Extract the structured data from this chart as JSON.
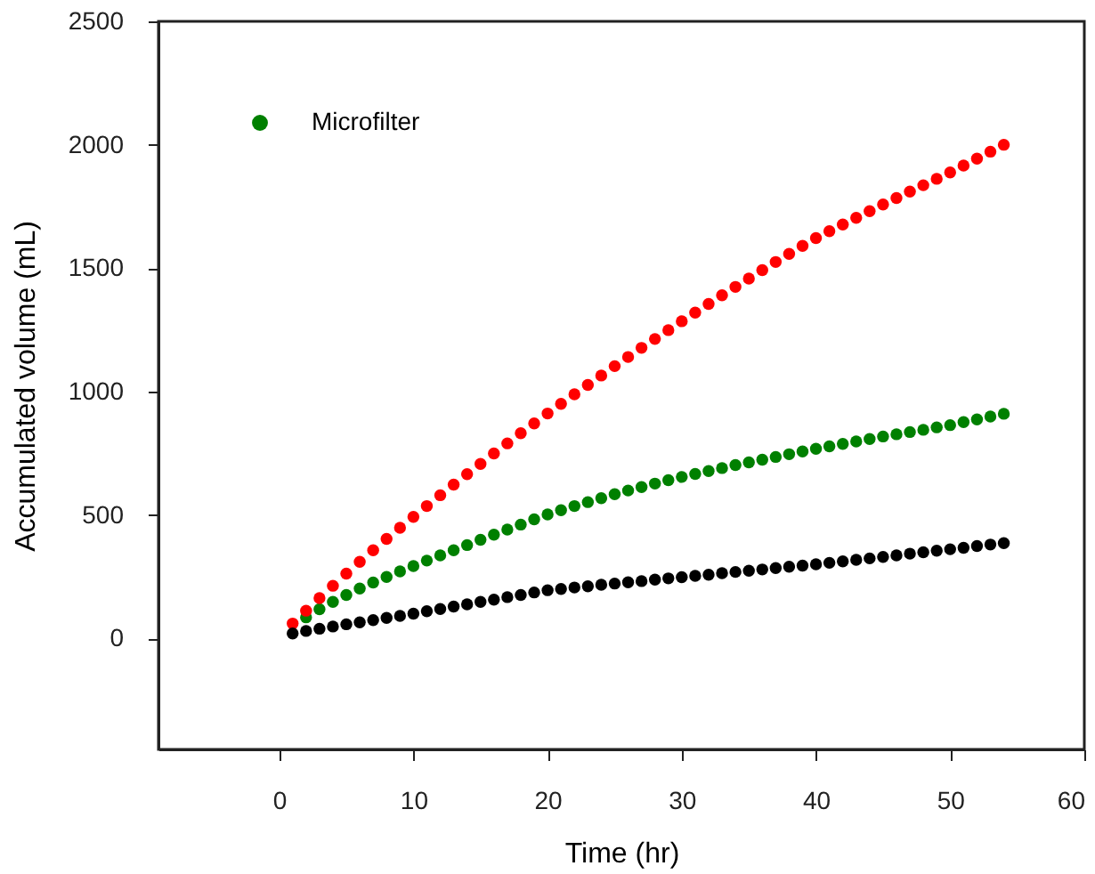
{
  "chart_data": {
    "type": "scatter",
    "xlabel": "Time (hr)",
    "ylabel": "Accumulated volume (mL)",
    "x": [
      1,
      2,
      3,
      4,
      5,
      6,
      7,
      8,
      9,
      10,
      11,
      12,
      13,
      14,
      15,
      16,
      17,
      18,
      19,
      20,
      21,
      22,
      23,
      24,
      25,
      26,
      27,
      28,
      29,
      30,
      31,
      32,
      33,
      34,
      35,
      36,
      37,
      38,
      39,
      40,
      41,
      42,
      43,
      44,
      45,
      46,
      47,
      48,
      49,
      50,
      51,
      52,
      53,
      54
    ],
    "series": [
      {
        "name": "Microfilter",
        "color": "#008000",
        "values": [
          null,
          85,
          118,
          148,
          176,
          202,
          226,
          249,
          271,
          293,
          315,
          336,
          357,
          378,
          399,
          420,
          441,
          461,
          482,
          502,
          519,
          536,
          552,
          568,
          584,
          599,
          613,
          627,
          641,
          654,
          666,
          678,
          690,
          702,
          713,
          724,
          735,
          746,
          757,
          768,
          778,
          788,
          798,
          808,
          818,
          827,
          836,
          845,
          855,
          864,
          876,
          887,
          899,
          910
        ]
      },
      {
        "color": "#ff0000",
        "values": [
          60,
          112,
          163,
          213,
          262,
          310,
          357,
          403,
          448,
          492,
          536,
          580,
          623,
          665,
          707,
          749,
          790,
          831,
          871,
          911,
          950,
          989,
          1027,
          1065,
          1103,
          1140,
          1177,
          1213,
          1249,
          1285,
          1320,
          1355,
          1390,
          1424,
          1458,
          1492,
          1525,
          1558,
          1590,
          1622,
          1650,
          1677,
          1704,
          1731,
          1758,
          1784,
          1810,
          1836,
          1862,
          1888,
          1916,
          1944,
          1972,
          2000
        ]
      },
      {
        "color": "#000000",
        "values": [
          20,
          30,
          39,
          48,
          57,
          65,
          74,
          83,
          91,
          100,
          110,
          119,
          129,
          138,
          148,
          157,
          167,
          176,
          186,
          195,
          200,
          206,
          211,
          217,
          222,
          227,
          232,
          238,
          243,
          248,
          253,
          258,
          264,
          269,
          274,
          279,
          285,
          290,
          295,
          300,
          306,
          312,
          318,
          324,
          330,
          336,
          343,
          349,
          355,
          361,
          367,
          374,
          380,
          386
        ]
      }
    ],
    "xlim": [
      -9,
      60
    ],
    "xticks": [
      0,
      10,
      20,
      30,
      40,
      50,
      60
    ],
    "ylim": [
      -450,
      2500
    ],
    "yticks": [
      0,
      500,
      1000,
      1500,
      2000,
      2500
    ],
    "marker": "circle",
    "grid": false,
    "legend": "top left"
  }
}
